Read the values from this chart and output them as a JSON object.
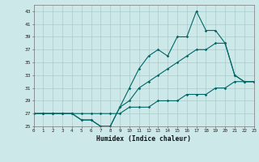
{
  "xlabel": "Humidex (Indice chaleur)",
  "bg_color": "#cde8e8",
  "grid_color": "#aacccc",
  "line_color": "#006666",
  "x": [
    0,
    1,
    2,
    3,
    4,
    5,
    6,
    7,
    8,
    9,
    10,
    11,
    12,
    13,
    14,
    15,
    16,
    17,
    18,
    19,
    20,
    21,
    22,
    23
  ],
  "line1": [
    27,
    27,
    27,
    27,
    27,
    26,
    26,
    25,
    25,
    28,
    31,
    34,
    36,
    37,
    36,
    39,
    39,
    43,
    40,
    40,
    38,
    33,
    32,
    32
  ],
  "line2": [
    27,
    27,
    27,
    27,
    27,
    26,
    26,
    25,
    25,
    28,
    29,
    31,
    32,
    33,
    34,
    35,
    36,
    37,
    37,
    38,
    38,
    33,
    32,
    32
  ],
  "line3": [
    27,
    27,
    27,
    27,
    27,
    27,
    27,
    27,
    27,
    27,
    28,
    28,
    28,
    29,
    29,
    29,
    30,
    30,
    30,
    31,
    31,
    32,
    32,
    32
  ],
  "ylim_min": 25,
  "ylim_max": 44,
  "yticks": [
    25,
    27,
    29,
    31,
    33,
    35,
    37,
    39,
    41,
    43
  ],
  "xlim_min": 0,
  "xlim_max": 23,
  "xticks": [
    0,
    1,
    2,
    3,
    4,
    5,
    6,
    7,
    8,
    9,
    10,
    11,
    12,
    13,
    14,
    15,
    16,
    17,
    18,
    19,
    20,
    21,
    22,
    23
  ]
}
